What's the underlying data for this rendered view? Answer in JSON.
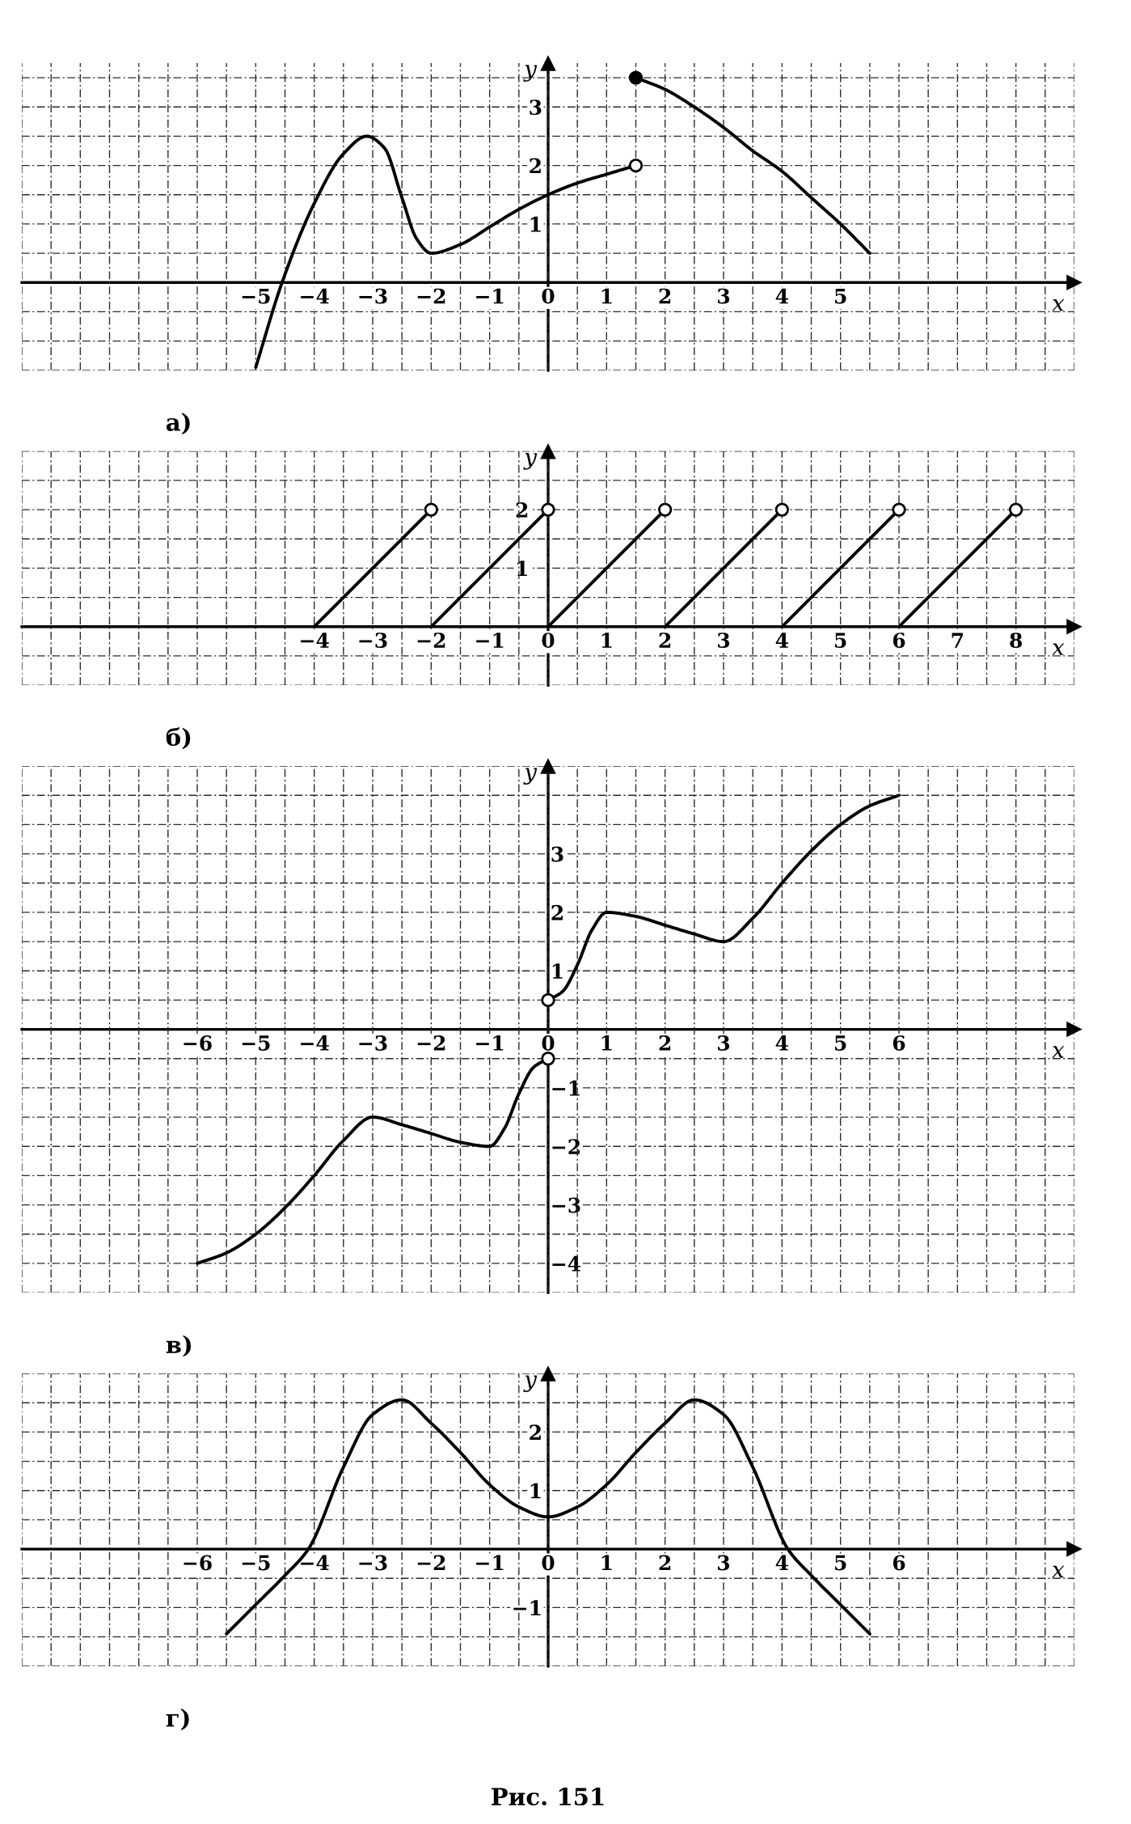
{
  "chart_data": [
    {
      "type": "line",
      "title": "а)",
      "xlabel": "x",
      "ylabel": "y",
      "xlim": [
        -9,
        9
      ],
      "ylim": [
        -1.5,
        3.75
      ],
      "grid": true,
      "xticks": [
        {
          "value": -9,
          "label": null
        },
        {
          "value": -8.5,
          "label": null
        },
        {
          "value": -8,
          "label": null
        },
        {
          "value": -7.5,
          "label": null
        },
        {
          "value": -7,
          "label": null
        },
        {
          "value": -6.5,
          "label": null
        },
        {
          "value": -6,
          "label": null
        },
        {
          "value": -5.5,
          "label": null
        },
        {
          "value": -5,
          "label": "−5"
        },
        {
          "value": -4.5,
          "label": null
        },
        {
          "value": -4,
          "label": "−4"
        },
        {
          "value": -3.5,
          "label": null
        },
        {
          "value": -3,
          "label": "−3"
        },
        {
          "value": -2.5,
          "label": null
        },
        {
          "value": -2,
          "label": "−2"
        },
        {
          "value": -1.5,
          "label": null
        },
        {
          "value": -1,
          "label": "−1"
        },
        {
          "value": -0.5,
          "label": null
        },
        0,
        {
          "value": 0.5,
          "label": null
        },
        1,
        {
          "value": 1.5,
          "label": null
        },
        2,
        {
          "value": 2.5,
          "label": null
        },
        3,
        {
          "value": 3.5,
          "label": null
        },
        4,
        {
          "value": 4.5,
          "label": null
        },
        5,
        {
          "value": 5.5,
          "label": null
        },
        {
          "value": 6,
          "label": null
        },
        {
          "value": 6.5,
          "label": null
        },
        {
          "value": 7,
          "label": null
        },
        {
          "value": 7.5,
          "label": null
        },
        {
          "value": 8,
          "label": null
        },
        {
          "value": 8.5,
          "label": null
        },
        {
          "value": 9,
          "label": null
        }
      ],
      "yticks": [
        {
          "value": -1.5,
          "label": null
        },
        {
          "value": -1,
          "label": null
        },
        {
          "value": -0.5,
          "label": null
        },
        {
          "value": 0,
          "label": null
        },
        {
          "value": 0.5,
          "label": null
        },
        1,
        {
          "value": 1.5,
          "label": null
        },
        2,
        {
          "value": 2.5,
          "label": null
        },
        3,
        {
          "value": 3.5,
          "label": null
        }
      ],
      "series": [
        {
          "x": [
            -5,
            -4.55,
            -4,
            -3.5,
            -3.1,
            -2.8,
            -2.5,
            -2.25,
            -2,
            -1.5,
            -1,
            -0.5,
            0,
            0.5,
            1,
            1.5
          ],
          "values": [
            -1.45,
            0,
            1.35,
            2.2,
            2.5,
            2.3,
            1.45,
            0.75,
            0.5,
            0.65,
            0.95,
            1.25,
            1.5,
            1.7,
            1.85,
            2
          ],
          "color": "#000000"
        },
        {
          "x": [
            1.5,
            2,
            2.5,
            3,
            3.5,
            4,
            4.5,
            5,
            5.5
          ],
          "values": [
            3.5,
            3.3,
            3.0,
            2.65,
            2.25,
            1.9,
            1.45,
            1.0,
            0.5
          ],
          "color": "#000000"
        },
        {
          "type": "scatter",
          "marker": "circle",
          "x": [
            1.5
          ],
          "values": [
            2
          ],
          "color": "#ffffff"
        },
        {
          "type": "scatter",
          "marker": "circle",
          "x": [
            1.5
          ],
          "values": [
            3.5
          ],
          "color": "#000000"
        }
      ]
    },
    {
      "type": "line",
      "title": "б)",
      "xlabel": "x",
      "ylabel": "y",
      "xlim": [
        -9,
        9
      ],
      "ylim": [
        -1,
        3
      ],
      "grid": true,
      "xticks": [
        {
          "value": -9,
          "label": null
        },
        {
          "value": -8.5,
          "label": null
        },
        {
          "value": -8,
          "label": null
        },
        {
          "value": -7.5,
          "label": null
        },
        {
          "value": -7,
          "label": null
        },
        {
          "value": -6.5,
          "label": null
        },
        {
          "value": -6,
          "label": null
        },
        {
          "value": -5.5,
          "label": null
        },
        {
          "value": -5,
          "label": null
        },
        {
          "value": -4.5,
          "label": null
        },
        {
          "value": -4,
          "label": "−4"
        },
        {
          "value": -3.5,
          "label": null
        },
        {
          "value": -3,
          "label": "−3"
        },
        {
          "value": -2.5,
          "label": null
        },
        {
          "value": -2,
          "label": "−2"
        },
        {
          "value": -1.5,
          "label": null
        },
        {
          "value": -1,
          "label": "−1"
        },
        {
          "value": -0.5,
          "label": null
        },
        0,
        {
          "value": 0.5,
          "label": null
        },
        1,
        {
          "value": 1.5,
          "label": null
        },
        2,
        {
          "value": 2.5,
          "label": null
        },
        3,
        {
          "value": 3.5,
          "label": null
        },
        4,
        {
          "value": 4.5,
          "label": null
        },
        5,
        {
          "value": 5.5,
          "label": null
        },
        6,
        {
          "value": 6.5,
          "label": null
        },
        7,
        {
          "value": 7.5,
          "label": null
        },
        8,
        {
          "value": 8.5,
          "label": null
        },
        {
          "value": 9,
          "label": null
        }
      ],
      "yticks": [
        {
          "value": -1,
          "label": null
        },
        {
          "value": -0.5,
          "label": null
        },
        {
          "value": 0,
          "label": null
        },
        {
          "value": 0.5,
          "label": null
        },
        1,
        {
          "value": 1.5,
          "label": null
        },
        2,
        {
          "value": 2.5,
          "label": null
        },
        {
          "value": 3,
          "label": null
        }
      ],
      "series": [
        {
          "x": [
            -4,
            -2
          ],
          "values": [
            0,
            2
          ],
          "color": "#000000"
        },
        {
          "x": [
            -2,
            0
          ],
          "values": [
            0,
            2
          ],
          "color": "#000000"
        },
        {
          "x": [
            0,
            2
          ],
          "values": [
            0,
            2
          ],
          "color": "#000000"
        },
        {
          "x": [
            2,
            4
          ],
          "values": [
            0,
            2
          ],
          "color": "#000000"
        },
        {
          "x": [
            4,
            6
          ],
          "values": [
            0,
            2
          ],
          "color": "#000000"
        },
        {
          "x": [
            6,
            8
          ],
          "values": [
            0,
            2
          ],
          "color": "#000000"
        },
        {
          "type": "scatter",
          "marker": "circle",
          "x": [
            -2,
            0,
            2,
            4,
            6,
            8
          ],
          "values": [
            2,
            2,
            2,
            2,
            2,
            2
          ],
          "color": "#ffffff"
        }
      ]
    },
    {
      "type": "line",
      "title": "в)",
      "xlabel": "x",
      "ylabel": "y",
      "xlim": [
        -9,
        9
      ],
      "ylim": [
        -4.5,
        4.5
      ],
      "grid": true,
      "xticks": [
        {
          "value": -9,
          "label": null
        },
        {
          "value": -8.5,
          "label": null
        },
        {
          "value": -8,
          "label": null
        },
        {
          "value": -7.5,
          "label": null
        },
        {
          "value": -7,
          "label": null
        },
        {
          "value": -6.5,
          "label": null
        },
        {
          "value": -6,
          "label": "−6"
        },
        {
          "value": -5.5,
          "label": null
        },
        {
          "value": -5,
          "label": "−5"
        },
        {
          "value": -4.5,
          "label": null
        },
        {
          "value": -4,
          "label": "−4"
        },
        {
          "value": -3.5,
          "label": null
        },
        {
          "value": -3,
          "label": "−3"
        },
        {
          "value": -2.5,
          "label": null
        },
        {
          "value": -2,
          "label": "−2"
        },
        {
          "value": -1.5,
          "label": null
        },
        {
          "value": -1,
          "label": "−1"
        },
        {
          "value": -0.5,
          "label": null
        },
        0,
        {
          "value": 0.5,
          "label": null
        },
        1,
        {
          "value": 1.5,
          "label": null
        },
        2,
        {
          "value": 2.5,
          "label": null
        },
        3,
        {
          "value": 3.5,
          "label": null
        },
        4,
        {
          "value": 4.5,
          "label": null
        },
        5,
        {
          "value": 5.5,
          "label": null
        },
        6,
        {
          "value": 6.5,
          "label": null
        },
        {
          "value": 7,
          "label": null
        },
        {
          "value": 7.5,
          "label": null
        },
        {
          "value": 8,
          "label": null
        },
        {
          "value": 8.5,
          "label": null
        },
        {
          "value": 9,
          "label": null
        }
      ],
      "yticks": [
        {
          "value": -4.5,
          "label": null
        },
        {
          "value": -4,
          "label": "−4"
        },
        {
          "value": -3.5,
          "label": null
        },
        {
          "value": -3,
          "label": "−3"
        },
        {
          "value": -2.5,
          "label": null
        },
        {
          "value": -2,
          "label": "−2"
        },
        {
          "value": -1.5,
          "label": null
        },
        {
          "value": -1,
          "label": "−1"
        },
        {
          "value": -0.5,
          "label": null
        },
        {
          "value": 0,
          "label": null
        },
        {
          "value": 0.5,
          "label": null
        },
        1,
        {
          "value": 1.5,
          "label": null
        },
        2,
        {
          "value": 2.5,
          "label": null
        },
        3,
        {
          "value": 3.5,
          "label": null
        },
        {
          "value": 4,
          "label": null
        },
        {
          "value": 4.5,
          "label": null
        }
      ],
      "series": [
        {
          "x": [
            -6,
            -5.5,
            -5,
            -4.5,
            -4,
            -3.5,
            -3,
            -2.5,
            -2,
            -1.5,
            -1,
            -0.75,
            -0.5,
            -0.25,
            0
          ],
          "values": [
            -4,
            -3.82,
            -3.5,
            -3.05,
            -2.5,
            -1.9,
            -1.5,
            -1.63,
            -1.78,
            -1.93,
            -2,
            -1.7,
            -1.1,
            -0.65,
            -0.5
          ],
          "color": "#000000"
        },
        {
          "x": [
            0,
            0.25,
            0.5,
            0.75,
            1,
            1.5,
            2,
            2.5,
            3,
            3.5,
            4,
            4.5,
            5,
            5.5,
            6
          ],
          "values": [
            0.5,
            0.65,
            1.1,
            1.7,
            2,
            1.93,
            1.78,
            1.63,
            1.5,
            1.9,
            2.5,
            3.05,
            3.5,
            3.82,
            4
          ],
          "color": "#000000"
        },
        {
          "type": "scatter",
          "marker": "circle",
          "x": [
            0,
            0
          ],
          "values": [
            0.5,
            -0.5
          ],
          "color": "#ffffff"
        }
      ]
    },
    {
      "type": "line",
      "title": "г)",
      "xlabel": "x",
      "ylabel": "y",
      "xlim": [
        -9,
        9
      ],
      "ylim": [
        -2,
        3
      ],
      "grid": true,
      "annotations": [
        "Рис. 151"
      ],
      "xticks": [
        {
          "value": -9,
          "label": null
        },
        {
          "value": -8.5,
          "label": null
        },
        {
          "value": -8,
          "label": null
        },
        {
          "value": -7.5,
          "label": null
        },
        {
          "value": -7,
          "label": null
        },
        {
          "value": -6.5,
          "label": null
        },
        {
          "value": -6,
          "label": "−6"
        },
        {
          "value": -5.5,
          "label": null
        },
        {
          "value": -5,
          "label": "−5"
        },
        {
          "value": -4.5,
          "label": null
        },
        {
          "value": -4,
          "label": "−4"
        },
        {
          "value": -3.5,
          "label": null
        },
        {
          "value": -3,
          "label": "−3"
        },
        {
          "value": -2.5,
          "label": null
        },
        {
          "value": -2,
          "label": "−2"
        },
        {
          "value": -1.5,
          "label": null
        },
        {
          "value": -1,
          "label": "−1"
        },
        {
          "value": -0.5,
          "label": null
        },
        0,
        {
          "value": 0.5,
          "label": null
        },
        1,
        {
          "value": 1.5,
          "label": null
        },
        2,
        {
          "value": 2.5,
          "label": null
        },
        3,
        {
          "value": 3.5,
          "label": null
        },
        4,
        {
          "value": 4.5,
          "label": null
        },
        5,
        {
          "value": 5.5,
          "label": null
        },
        6,
        {
          "value": 6.5,
          "label": null
        },
        {
          "value": 7,
          "label": null
        },
        {
          "value": 7.5,
          "label": null
        },
        {
          "value": 8,
          "label": null
        },
        {
          "value": 8.5,
          "label": null
        },
        {
          "value": 9,
          "label": null
        }
      ],
      "yticks": [
        {
          "value": -2,
          "label": null
        },
        {
          "value": -1.5,
          "label": null
        },
        {
          "value": -1,
          "label": "−1"
        },
        {
          "value": -0.5,
          "label": null
        },
        {
          "value": 0,
          "label": null
        },
        {
          "value": 0.5,
          "label": null
        },
        1,
        {
          "value": 1.5,
          "label": null
        },
        2,
        {
          "value": 2.5,
          "label": null
        },
        {
          "value": 3,
          "label": null
        }
      ],
      "series": [
        {
          "x": [
            -5.5,
            -5,
            -4.5,
            -4.1,
            -3.5,
            -3,
            -2.5,
            -2,
            -1.5,
            -1,
            -0.5,
            0,
            0.5,
            1,
            1.5,
            2,
            2.5,
            3,
            3.5,
            4.1,
            4.5,
            5,
            5.5
          ],
          "values": [
            -1.45,
            -0.95,
            -0.45,
            0,
            1.4,
            2.3,
            2.55,
            2.15,
            1.65,
            1.1,
            0.72,
            0.55,
            0.72,
            1.1,
            1.65,
            2.15,
            2.55,
            2.3,
            1.4,
            0,
            -0.45,
            -0.95,
            -1.45
          ],
          "color": "#000000"
        }
      ]
    }
  ]
}
